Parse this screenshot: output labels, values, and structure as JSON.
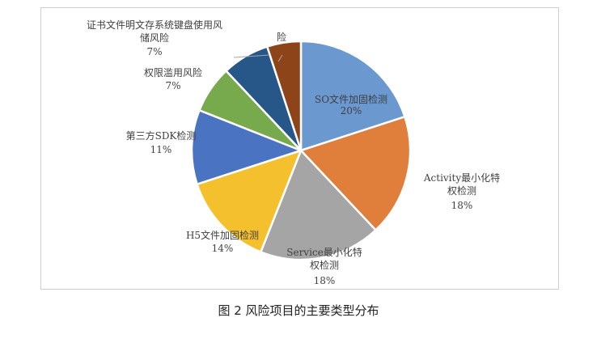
{
  "caption": "图 2 风险项目的主要类型分布",
  "chart_data": {
    "type": "pie",
    "title": "",
    "slices": [
      {
        "lines": [
          "SO文件加固检测"
        ],
        "percent": "20%",
        "value": 20,
        "color": "#6a98cf"
      },
      {
        "lines": [
          "Activity最小化特",
          "权检测"
        ],
        "percent": "18%",
        "value": 18,
        "color": "#e07f3c"
      },
      {
        "lines": [
          "Service最小化特",
          "权检测"
        ],
        "percent": "18%",
        "value": 18,
        "color": "#a5a5a5"
      },
      {
        "lines": [
          "H5文件加固检测"
        ],
        "percent": "14%",
        "value": 14,
        "color": "#f5c02d"
      },
      {
        "lines": [
          "第三方SDK检测"
        ],
        "percent": "11%",
        "value": 11,
        "color": "#4a74c2"
      },
      {
        "lines": [
          "权限滥用风险"
        ],
        "percent": "7%",
        "value": 7,
        "color": "#76aa4d"
      },
      {
        "lines": [
          "证书文件明文存系统键盘使用风",
          "储风险"
        ],
        "percent": "7%",
        "value": 7,
        "color": "#275689"
      },
      {
        "lines": [
          "险"
        ],
        "percent": "",
        "value": 5,
        "color": "#8e4419"
      }
    ],
    "start_angle_deg": 0,
    "direction": "clockwise",
    "legend": "none"
  }
}
